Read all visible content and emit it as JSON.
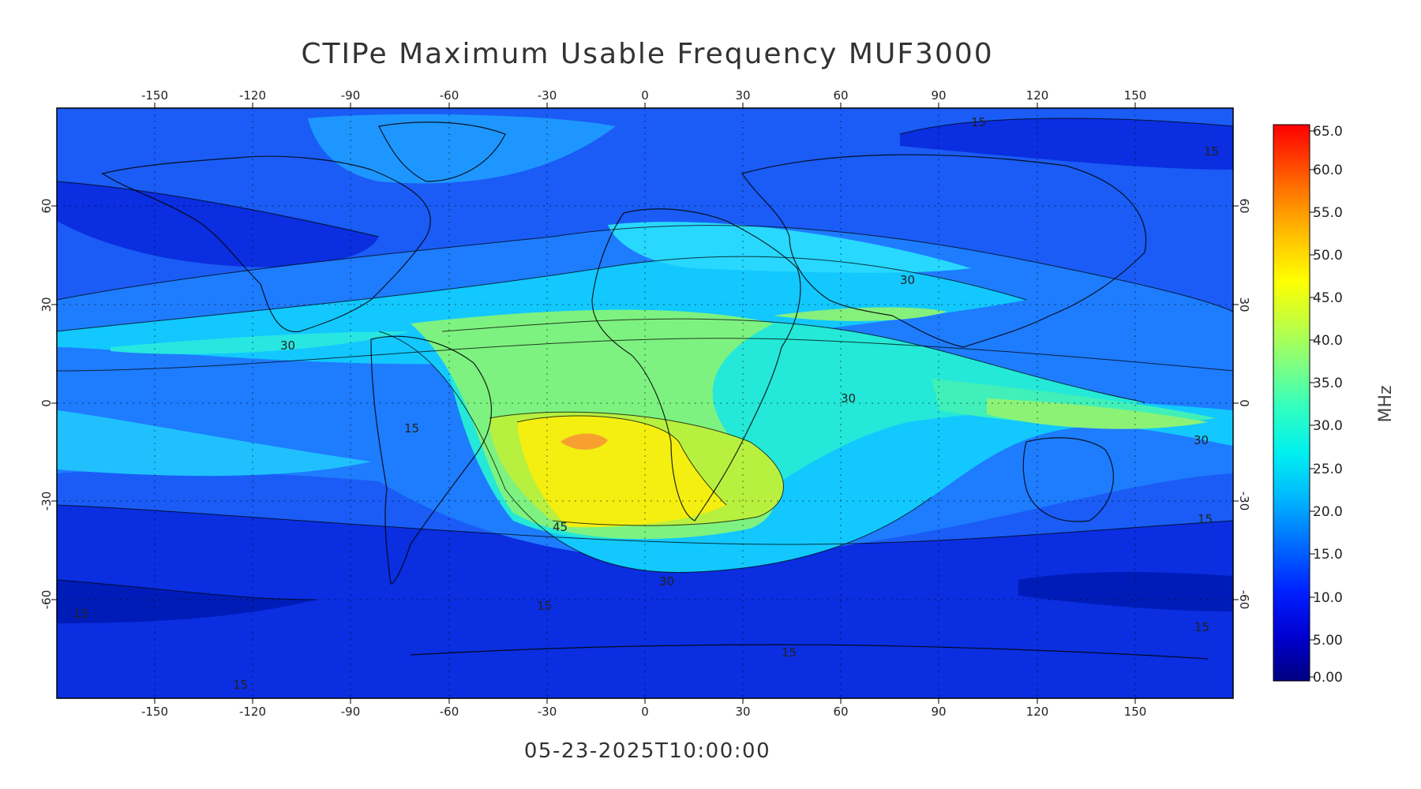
{
  "title": "CTIPe Maximum Usable Frequency MUF3000",
  "timestamp": "05-23-2025T10:00:00",
  "colorbar": {
    "unit": "MHz",
    "labels": [
      "65.0",
      "60.0",
      "55.0",
      "50.0",
      "45.0",
      "40.0",
      "35.0",
      "30.0",
      "25.0",
      "20.0",
      "15.0",
      "10.0",
      "5.00",
      "0.00"
    ],
    "stops": [
      "#00008f",
      "#0000ff",
      "#0060ff",
      "#00c0ff",
      "#00ffff",
      "#40ffbf",
      "#80ff80",
      "#c0ff40",
      "#ffff00",
      "#ffc000",
      "#ff8000",
      "#ff4000",
      "#ff0000"
    ]
  },
  "axes": {
    "lon_ticks": [
      "-150",
      "-120",
      "-90",
      "-60",
      "-30",
      "0",
      "30",
      "60",
      "90",
      "120",
      "150"
    ],
    "lat_ticks": [
      "60",
      "30",
      "0",
      "-30",
      "-60"
    ]
  },
  "contour_labels": {
    "l1": "15",
    "l2": "15",
    "l3": "30",
    "l4": "30",
    "l5": "30",
    "l6": "15",
    "l7": "45",
    "l8": "30",
    "l9": "15",
    "l10": "15",
    "l11": "15",
    "l12": "30",
    "l13": "15",
    "l14": "15",
    "l15": "15"
  }
}
